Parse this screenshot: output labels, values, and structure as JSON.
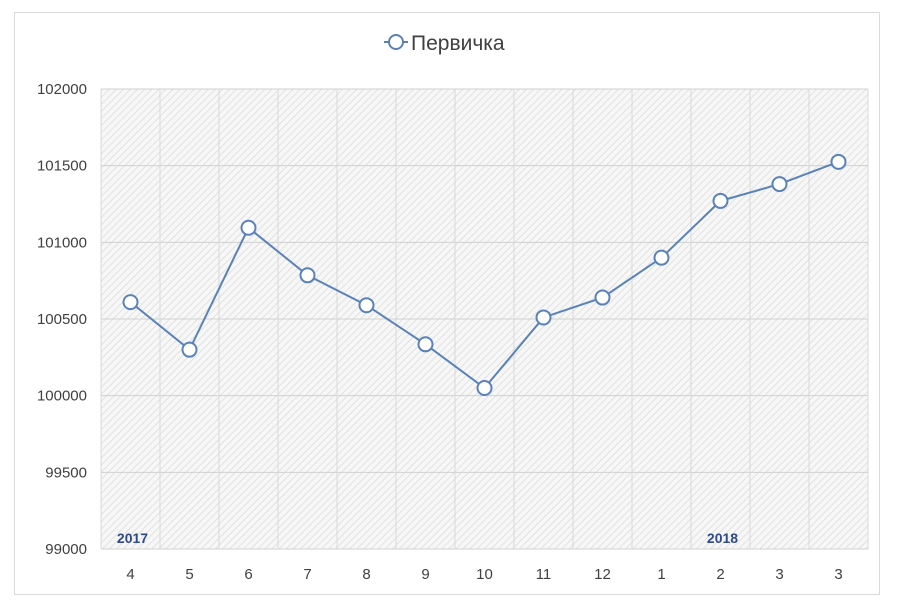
{
  "chart_data": {
    "type": "line",
    "legend": {
      "position": "top",
      "entries": [
        "Первичка"
      ]
    },
    "categories": [
      "4",
      "5",
      "6",
      "7",
      "8",
      "9",
      "10",
      "11",
      "12",
      "1",
      "2",
      "3",
      "3"
    ],
    "year_labels": [
      {
        "text": "2017",
        "at_category_index": 0
      },
      {
        "text": "2018",
        "at_category_index": 10
      }
    ],
    "series": [
      {
        "name": "Первичка",
        "color": "#5b82b8",
        "values": [
          100610,
          100300,
          101095,
          100785,
          100590,
          100335,
          100050,
          100510,
          100640,
          100900,
          101270,
          101380,
          101525
        ]
      }
    ],
    "ylim": [
      99000,
      102000
    ],
    "yticks": [
      "99000",
      "99500",
      "100000",
      "100500",
      "101000",
      "101500",
      "102000"
    ],
    "grid": true,
    "plot_background": "hatched-gray"
  }
}
